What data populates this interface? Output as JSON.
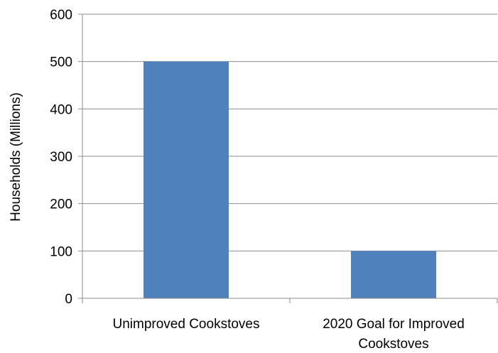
{
  "chart_data": {
    "type": "bar",
    "categories": [
      "Unimproved Cookstoves",
      "2020 Goal for Improved Cookstoves"
    ],
    "category_lines": [
      [
        "Unimproved Cookstoves"
      ],
      [
        "2020 Goal for Improved",
        "Cookstoves"
      ]
    ],
    "values": [
      500,
      100
    ],
    "title": "",
    "xlabel": "",
    "ylabel": "Households (Millions)",
    "ylim": [
      0,
      600
    ],
    "yticks": [
      0,
      100,
      200,
      300,
      400,
      500,
      600
    ],
    "grid": true,
    "legend": "none",
    "bar_color": "#4F81BD",
    "grid_color": "#8C8C8C",
    "axis_color": "#8C8C8C"
  }
}
